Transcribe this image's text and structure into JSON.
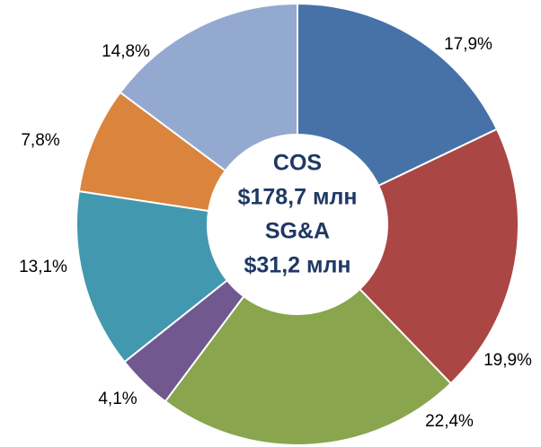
{
  "chart_data": {
    "type": "donut",
    "values": [
      17.9,
      19.9,
      22.4,
      4.1,
      13.1,
      7.8,
      14.8
    ],
    "value_labels": [
      "17,9%",
      "19,9%",
      "22,4%",
      "4,1%",
      "13,1%",
      "7,8%",
      "14,8%"
    ],
    "colors": [
      "#4672a8",
      "#aa4644",
      "#89a54e",
      "#71588f",
      "#4298af",
      "#db843d",
      "#93a9cf"
    ],
    "annotations": [
      "COS",
      "$178,7 млн",
      "SG&A",
      "$31,2 млн"
    ]
  }
}
